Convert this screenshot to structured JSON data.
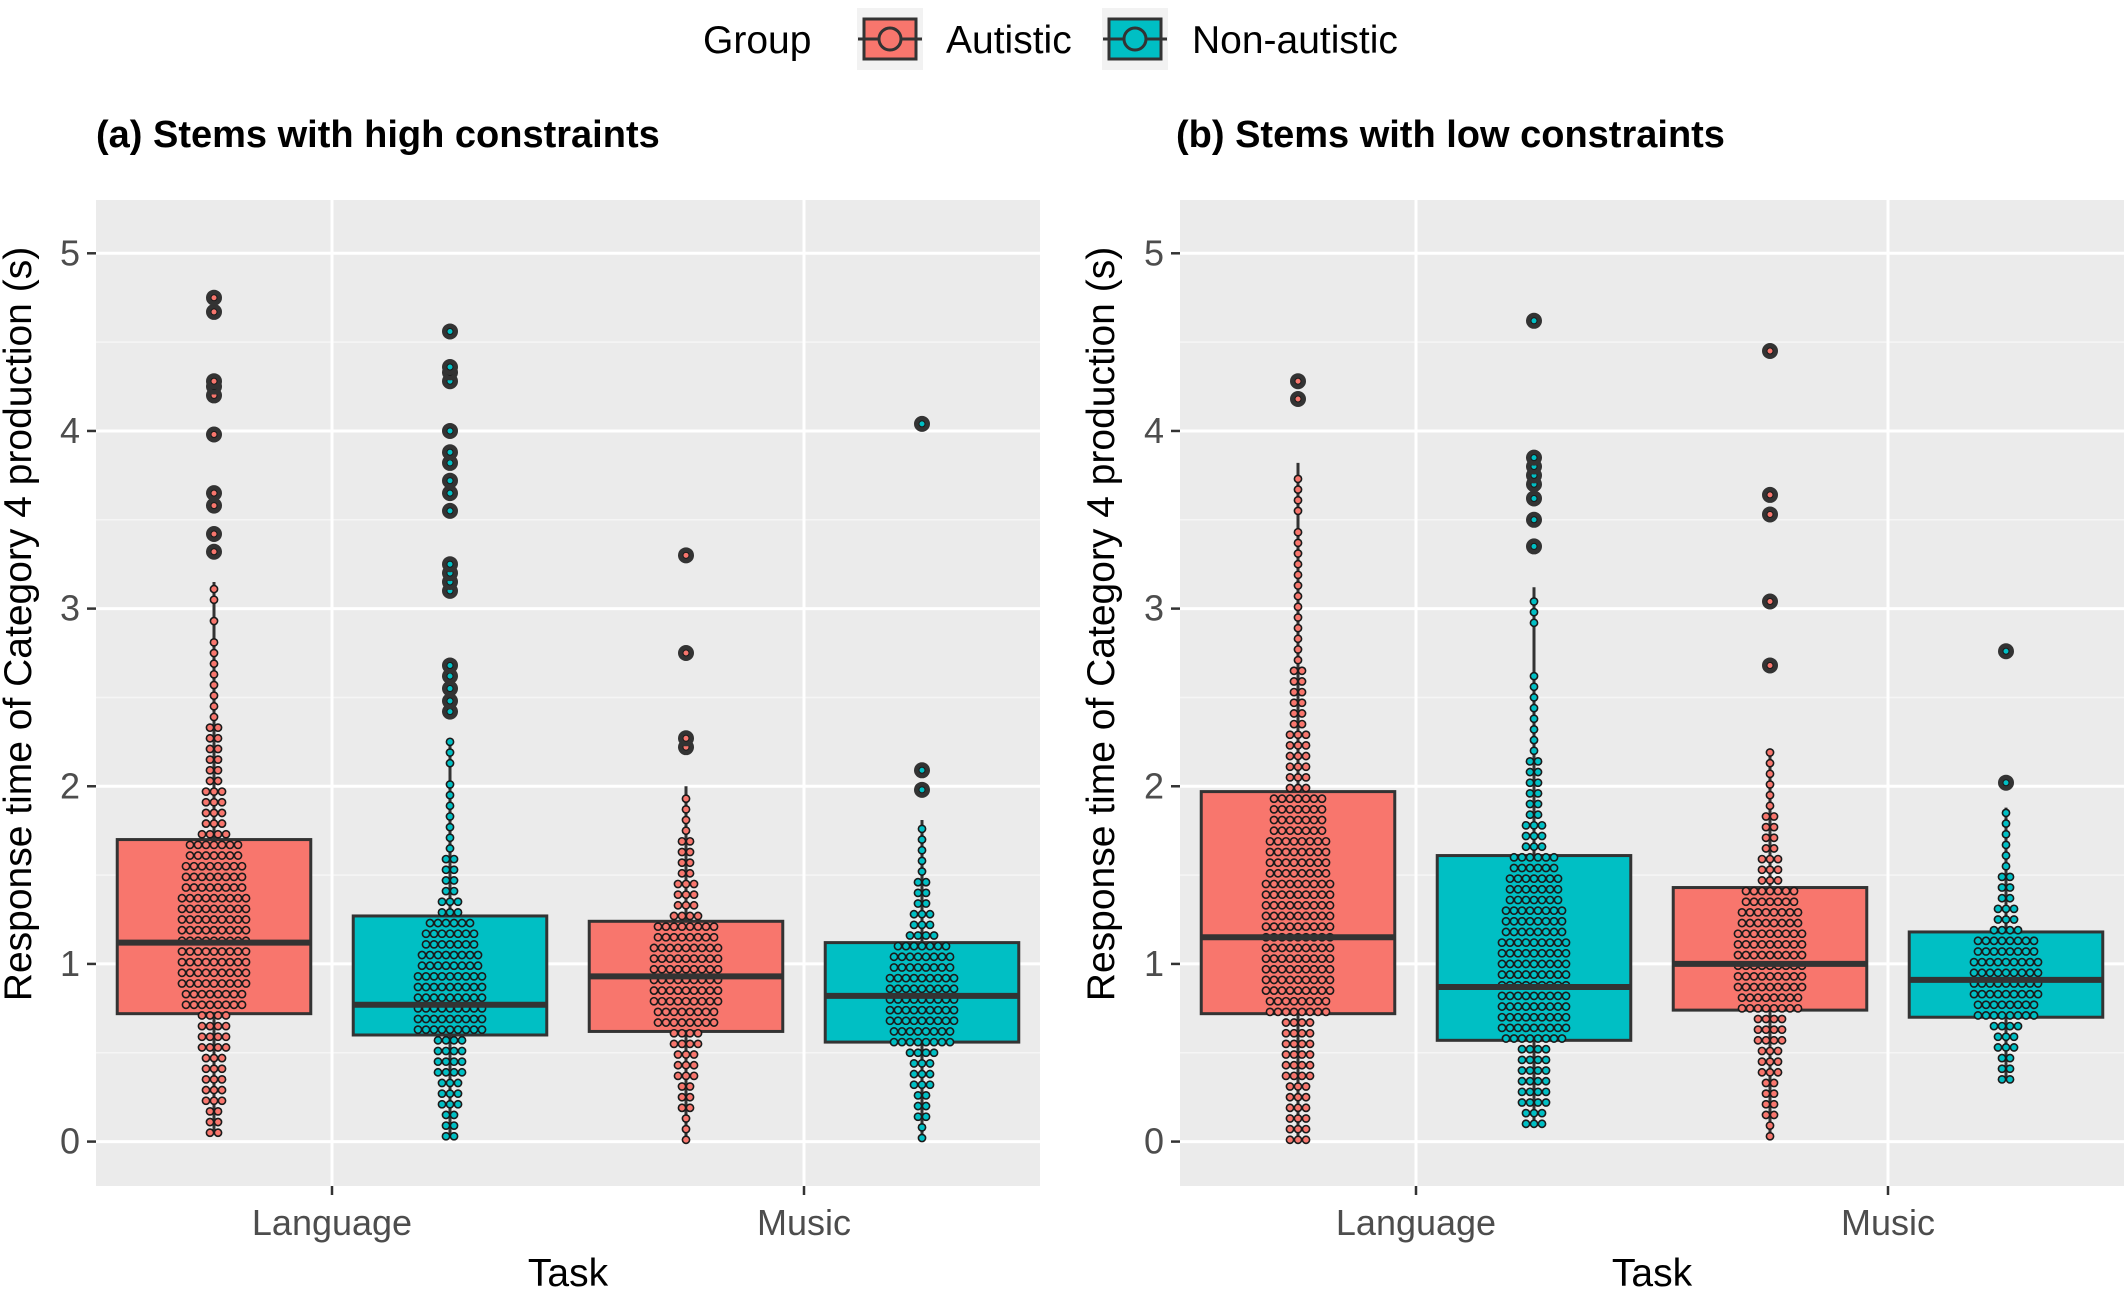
{
  "legend": {
    "title": "Group",
    "items": [
      {
        "label": "Autistic",
        "color": "#F8766D"
      },
      {
        "label": "Non-autistic",
        "color": "#00BFC4"
      }
    ]
  },
  "chart_data": {
    "type": "box",
    "ylabel": "Response time of Category 4 production (s)",
    "xlabel": "Task",
    "ylim": [
      -0.25,
      5.3
    ],
    "yticks": [
      "0",
      "1",
      "2",
      "3",
      "4",
      "5"
    ],
    "categories": [
      "Language",
      "Music"
    ],
    "grid": true,
    "legend_position": "top",
    "panels": [
      {
        "title": "(a) Stems with high constraints",
        "boxes": [
          {
            "task": "Language",
            "group": "Autistic",
            "q1": 0.72,
            "median": 1.12,
            "q3": 1.7,
            "whisker_low": 0.05,
            "whisker_high": 3.15,
            "outliers": [
              3.32,
              3.42,
              3.58,
              3.65,
              3.98,
              4.2,
              4.25,
              4.28,
              4.67,
              4.75
            ]
          },
          {
            "task": "Language",
            "group": "Non-autistic",
            "q1": 0.6,
            "median": 0.77,
            "q3": 1.27,
            "whisker_low": 0.03,
            "whisker_high": 2.27,
            "outliers": [
              2.42,
              2.48,
              2.55,
              2.62,
              2.68,
              3.1,
              3.15,
              3.2,
              3.25,
              3.55,
              3.65,
              3.72,
              3.82,
              3.88,
              4.0,
              4.28,
              4.33,
              4.36,
              4.56
            ]
          },
          {
            "task": "Music",
            "group": "Autistic",
            "q1": 0.62,
            "median": 0.93,
            "q3": 1.24,
            "whisker_low": 0.01,
            "whisker_high": 2.0,
            "outliers": [
              2.22,
              2.27,
              2.75,
              3.3
            ]
          },
          {
            "task": "Music",
            "group": "Non-autistic",
            "q1": 0.56,
            "median": 0.82,
            "q3": 1.12,
            "whisker_low": 0.02,
            "whisker_high": 1.81,
            "outliers": [
              1.98,
              2.09,
              4.04
            ]
          }
        ]
      },
      {
        "title": "(b) Stems with low constraints",
        "boxes": [
          {
            "task": "Language",
            "group": "Autistic",
            "q1": 0.72,
            "median": 1.15,
            "q3": 1.97,
            "whisker_low": 0.01,
            "whisker_high": 3.82,
            "outliers": [
              4.18,
              4.28
            ]
          },
          {
            "task": "Language",
            "group": "Non-autistic",
            "q1": 0.57,
            "median": 0.87,
            "q3": 1.61,
            "whisker_low": 0.1,
            "whisker_high": 3.12,
            "outliers": [
              3.35,
              3.5,
              3.62,
              3.7,
              3.75,
              3.8,
              3.85,
              4.62
            ]
          },
          {
            "task": "Music",
            "group": "Autistic",
            "q1": 0.74,
            "median": 1.0,
            "q3": 1.43,
            "whisker_low": 0.03,
            "whisker_high": 2.2,
            "outliers": [
              2.68,
              3.04,
              3.53,
              3.64,
              4.45
            ]
          },
          {
            "task": "Music",
            "group": "Non-autistic",
            "q1": 0.7,
            "median": 0.91,
            "q3": 1.18,
            "whisker_low": 0.35,
            "whisker_high": 1.88,
            "outliers": [
              2.02,
              2.76
            ]
          }
        ]
      }
    ]
  }
}
